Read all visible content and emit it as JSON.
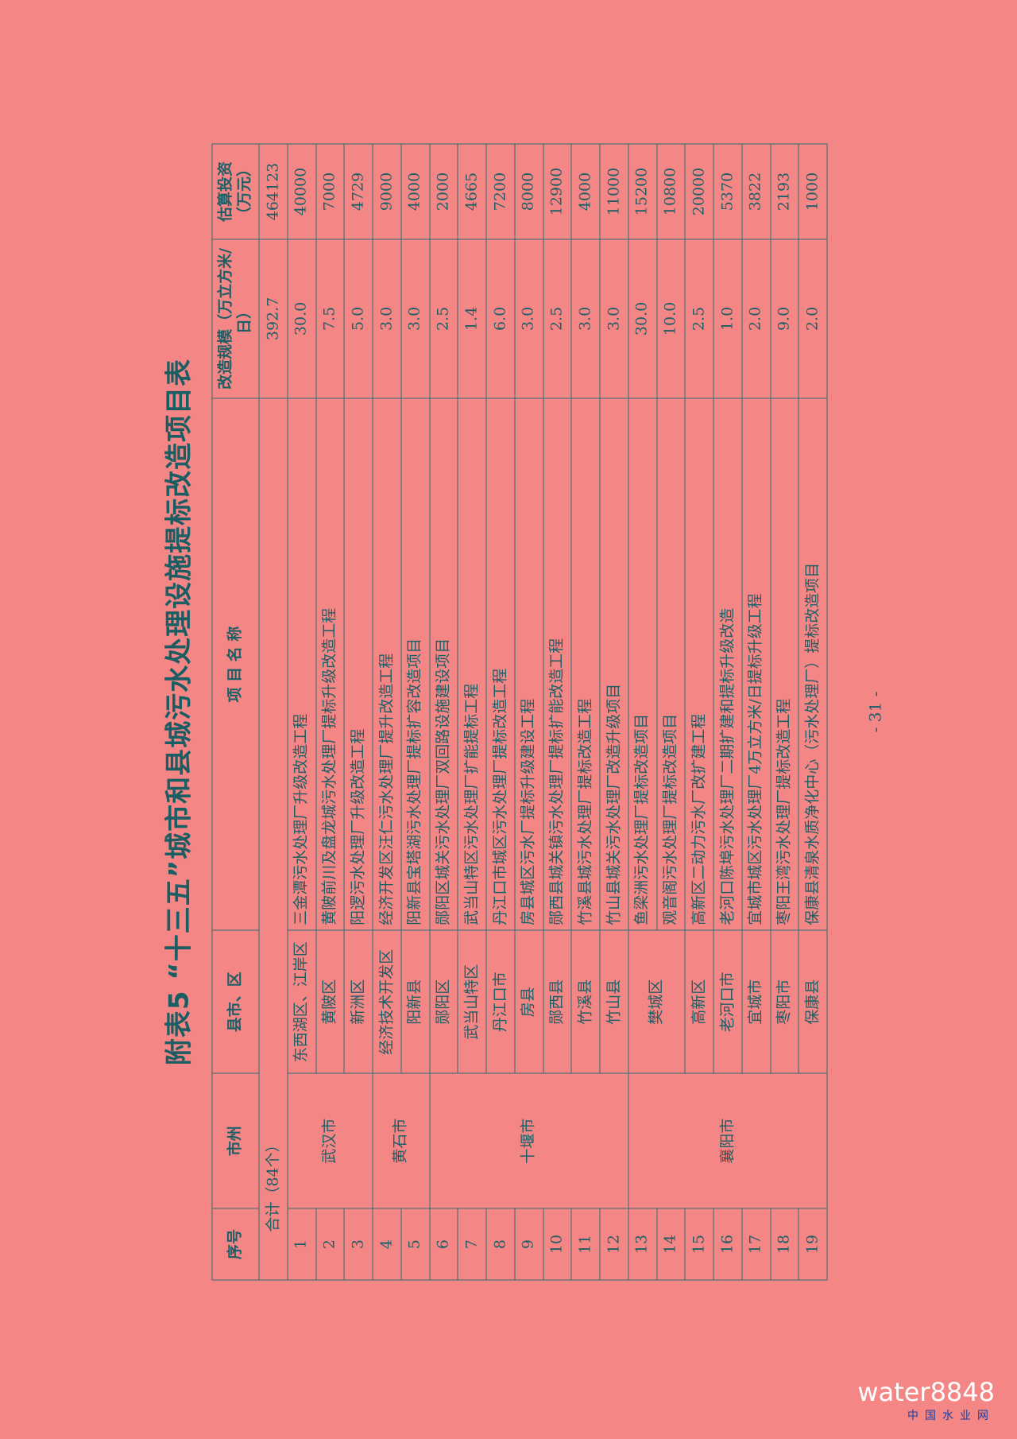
{
  "document": {
    "title": "附表5 “十三五”城市和县城污水处理设施提标改造项目表",
    "header": [
      "序号",
      "市州",
      "县市、区",
      "项 目 名 称",
      "改造规模（万立方米/日）",
      "估算投资（万元）"
    ],
    "total": {
      "label": "合计（84个）",
      "scale": "392.7",
      "investment": "464123"
    },
    "rows": [
      {
        "no": "1",
        "city": "武汉市",
        "county": "东西湖区、江岸区",
        "project": "三金潭污水处理厂升级改造工程",
        "scale": "30.0",
        "investment": "40000"
      },
      {
        "no": "2",
        "county": "黄陂区",
        "project": "黄陂前川及盘龙城污水处理厂提标升级改造工程",
        "scale": "7.5",
        "investment": "7000"
      },
      {
        "no": "3",
        "county": "新洲区",
        "project": "阳逻污水处理厂升级改造工程",
        "scale": "5.0",
        "investment": "4729"
      },
      {
        "no": "4",
        "city": "黄石市",
        "county": "经济技术开发区",
        "project": "经济开发区汪仁污水处理厂提升改造工程",
        "scale": "3.0",
        "investment": "9000"
      },
      {
        "no": "5",
        "county": "阳新县",
        "project": "阳新县宝塔湖污水处理厂提标扩容改造项目",
        "scale": "3.0",
        "investment": "4000"
      },
      {
        "no": "6",
        "city": "十堰市",
        "county": "郧阳区",
        "project": "郧阳区城关污水处理厂双回路设施建设项目",
        "scale": "2.5",
        "investment": "2000"
      },
      {
        "no": "7",
        "county": "武当山特区",
        "project": "武当山特区污水处理厂扩能提标工程",
        "scale": "1.4",
        "investment": "4665"
      },
      {
        "no": "8",
        "county": "丹江口市",
        "project": "丹江口市城区污水处理厂提标改造工程",
        "scale": "6.0",
        "investment": "7200"
      },
      {
        "no": "9",
        "county": "房县",
        "project": "房县城区污水厂提标升级建设工程",
        "scale": "3.0",
        "investment": "8000"
      },
      {
        "no": "10",
        "county": "郧西县",
        "project": "郧西县城关镇污水处理厂提标扩能改造工程",
        "scale": "2.5",
        "investment": "12900"
      },
      {
        "no": "11",
        "county": "竹溪县",
        "project": "竹溪县城污水处理厂提标改造工程",
        "scale": "3.0",
        "investment": "4000"
      },
      {
        "no": "12",
        "county": "竹山县",
        "project": "竹山县城关污水处理厂改造升级项目",
        "scale": "3.0",
        "investment": "11000"
      },
      {
        "no": "13",
        "city": "襄阳市",
        "county": "樊城区",
        "project": "鱼梁洲污水处理厂提标改造项目",
        "scale": "30.0",
        "investment": "15200"
      },
      {
        "no": "14",
        "project": "观音阁污水处理厂提标改造项目",
        "scale": "10.0",
        "investment": "10800"
      },
      {
        "no": "15",
        "county": "高新区",
        "project": "高新区二动力污水厂改扩建工程",
        "scale": "2.5",
        "investment": "20000"
      },
      {
        "no": "16",
        "county": "老河口市",
        "project": "老河口陈埠污水处理厂二期扩建和提标升级改造",
        "scale": "1.0",
        "investment": "5370"
      },
      {
        "no": "17",
        "county": "宜城市",
        "project": "宜城市城区污水处理厂4万立方米/日提标升级工程",
        "scale": "2.0",
        "investment": "3822"
      },
      {
        "no": "18",
        "county": "枣阳市",
        "project": "枣阳王湾污水处理厂提标改造工程",
        "scale": "9.0",
        "investment": "2193"
      },
      {
        "no": "19",
        "county": "保康县",
        "project": "保康县清泉水质净化中心（污水处理厂）提标改造项目",
        "scale": "2.0",
        "investment": "1000"
      }
    ],
    "page_number": "- 31 -",
    "watermark": {
      "account": "water8848",
      "site": "中国水业网"
    }
  }
}
